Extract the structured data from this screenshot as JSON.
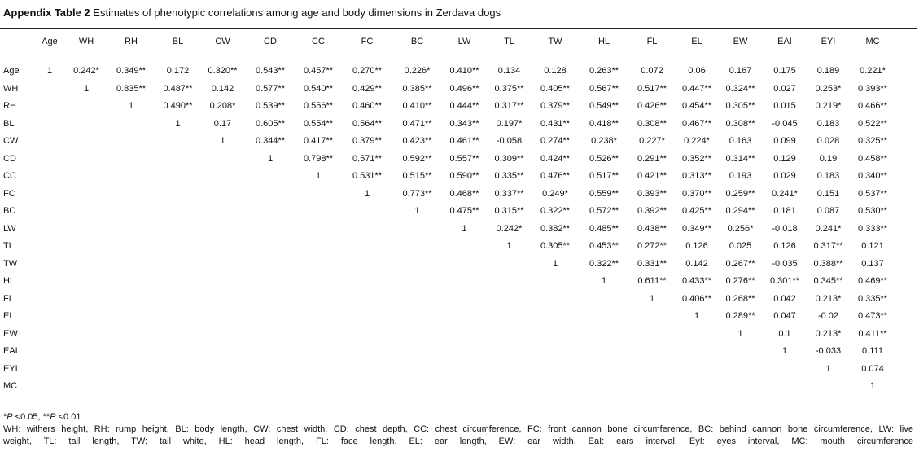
{
  "title": {
    "label": "Appendix Table 2",
    "text": " Estimates of phenotypic correlations among age and body dimensions in Zerdava dogs"
  },
  "columns": [
    "Age",
    "WH",
    "RH",
    "BL",
    "CW",
    "CD",
    "CC",
    "FC",
    "BC",
    "LW",
    "TL",
    "TW",
    "HL",
    "FL",
    "EL",
    "EW",
    "EAI",
    "EYI",
    "MC"
  ],
  "rows": [
    {
      "label": "Age",
      "values": [
        "1",
        "0.242*",
        "0.349**",
        "0.172",
        "0.320**",
        "0.543**",
        "0.457**",
        "0.270**",
        "0.226*",
        "0.410**",
        "0.134",
        "0.128",
        "0.263**",
        "0.072",
        "0.06",
        "0.167",
        "0.175",
        "0.189",
        "0.221*"
      ]
    },
    {
      "label": "WH",
      "values": [
        "",
        "1",
        "0.835**",
        "0.487**",
        "0.142",
        "0.577**",
        "0.540**",
        "0.429**",
        "0.385**",
        "0.496**",
        "0.375**",
        "0.405**",
        "0.567**",
        "0.517**",
        "0.447**",
        "0.324**",
        "0.027",
        "0.253*",
        "0.393**"
      ]
    },
    {
      "label": "RH",
      "values": [
        "",
        "",
        "1",
        "0.490**",
        "0.208*",
        "0.539**",
        "0.556**",
        "0.460**",
        "0.410**",
        "0.444**",
        "0.317**",
        "0.379**",
        "0.549**",
        "0.426**",
        "0.454**",
        "0.305**",
        "0.015",
        "0.219*",
        "0.466**"
      ]
    },
    {
      "label": "BL",
      "values": [
        "",
        "",
        "",
        "1",
        "0.17",
        "0.605**",
        "0.554**",
        "0.564**",
        "0.471**",
        "0.343**",
        "0.197*",
        "0.431**",
        "0.418**",
        "0.308**",
        "0.467**",
        "0.308**",
        "-0.045",
        "0.183",
        "0.522**"
      ]
    },
    {
      "label": "CW",
      "values": [
        "",
        "",
        "",
        "",
        "1",
        "0.344**",
        "0.417**",
        "0.379**",
        "0.423**",
        "0.461**",
        "-0.058",
        "0.274**",
        "0.238*",
        "0.227*",
        "0.224*",
        "0.163",
        "0.099",
        "0.028",
        "0.325**"
      ]
    },
    {
      "label": "CD",
      "values": [
        "",
        "",
        "",
        "",
        "",
        "1",
        "0.798**",
        "0.571**",
        "0.592**",
        "0.557**",
        "0.309**",
        "0.424**",
        "0.526**",
        "0.291**",
        "0.352**",
        "0.314**",
        "0.129",
        "0.19",
        "0.458**"
      ]
    },
    {
      "label": "CC",
      "values": [
        "",
        "",
        "",
        "",
        "",
        "",
        "1",
        "0.531**",
        "0.515**",
        "0.590**",
        "0.335**",
        "0.476**",
        "0.517**",
        "0.421**",
        "0.313**",
        "0.193",
        "0.029",
        "0.183",
        "0.340**"
      ]
    },
    {
      "label": "FC",
      "values": [
        "",
        "",
        "",
        "",
        "",
        "",
        "",
        "1",
        "0.773**",
        "0.468**",
        "0.337**",
        "0.249*",
        "0.559**",
        "0.393**",
        "0.370**",
        "0.259**",
        "0.241*",
        "0.151",
        "0.537**"
      ]
    },
    {
      "label": "BC",
      "values": [
        "",
        "",
        "",
        "",
        "",
        "",
        "",
        "",
        "1",
        "0.475**",
        "0.315**",
        "0.322**",
        "0.572**",
        "0.392**",
        "0.425**",
        "0.294**",
        "0.181",
        "0.087",
        "0.530**"
      ]
    },
    {
      "label": "LW",
      "values": [
        "",
        "",
        "",
        "",
        "",
        "",
        "",
        "",
        "",
        "1",
        "0.242*",
        "0.382**",
        "0.485**",
        "0.438**",
        "0.349**",
        "0.256*",
        "-0.018",
        "0.241*",
        "0.333**"
      ]
    },
    {
      "label": "TL",
      "values": [
        "",
        "",
        "",
        "",
        "",
        "",
        "",
        "",
        "",
        "",
        "1",
        "0.305**",
        "0.453**",
        "0.272**",
        "0.126",
        "0.025",
        "0.126",
        "0.317**",
        "0.121"
      ]
    },
    {
      "label": "TW",
      "values": [
        "",
        "",
        "",
        "",
        "",
        "",
        "",
        "",
        "",
        "",
        "",
        "1",
        "0.322**",
        "0.331**",
        "0.142",
        "0.267**",
        "-0.035",
        "0.388**",
        "0.137"
      ]
    },
    {
      "label": "HL",
      "values": [
        "",
        "",
        "",
        "",
        "",
        "",
        "",
        "",
        "",
        "",
        "",
        "",
        "1",
        "0.611**",
        "0.433**",
        "0.276**",
        "0.301**",
        "0.345**",
        "0.469**"
      ]
    },
    {
      "label": "FL",
      "values": [
        "",
        "",
        "",
        "",
        "",
        "",
        "",
        "",
        "",
        "",
        "",
        "",
        "",
        "1",
        "0.406**",
        "0.268**",
        "0.042",
        "0.213*",
        "0.335**"
      ]
    },
    {
      "label": "EL",
      "values": [
        "",
        "",
        "",
        "",
        "",
        "",
        "",
        "",
        "",
        "",
        "",
        "",
        "",
        "",
        "1",
        "0.289**",
        "0.047",
        "-0.02",
        "0.473**"
      ]
    },
    {
      "label": "EW",
      "values": [
        "",
        "",
        "",
        "",
        "",
        "",
        "",
        "",
        "",
        "",
        "",
        "",
        "",
        "",
        "",
        "1",
        "0.1",
        "0.213*",
        "0.411**"
      ]
    },
    {
      "label": "EAI",
      "values": [
        "",
        "",
        "",
        "",
        "",
        "",
        "",
        "",
        "",
        "",
        "",
        "",
        "",
        "",
        "",
        "",
        "1",
        "-0.033",
        "0.111"
      ]
    },
    {
      "label": "EYI",
      "values": [
        "",
        "",
        "",
        "",
        "",
        "",
        "",
        "",
        "",
        "",
        "",
        "",
        "",
        "",
        "",
        "",
        "",
        "1",
        "0.074"
      ]
    },
    {
      "label": "MC",
      "values": [
        "",
        "",
        "",
        "",
        "",
        "",
        "",
        "",
        "",
        "",
        "",
        "",
        "",
        "",
        "",
        "",
        "",
        "",
        "1"
      ]
    }
  ],
  "footnotes": {
    "sig_p1": "P",
    "sig_t1": " <0.05, **",
    "sig_p2": "P",
    "sig_t2": " <0.01",
    "sig_prefix": "*",
    "abbr_line1": "WH: withers height, RH: rump height, BL: body length, CW: chest width, CD: chest depth, CC: chest circumference, FC: front cannon bone circumference, BC: behind cannon bone circumference, LW: live",
    "abbr_line2": "weight, TL: tail length, TW: tail white, HL: head length, FL: face length, EL: ear length, EW: ear width, EaI: ears interval, EyI: eyes interval, MC: mouth circumference"
  }
}
